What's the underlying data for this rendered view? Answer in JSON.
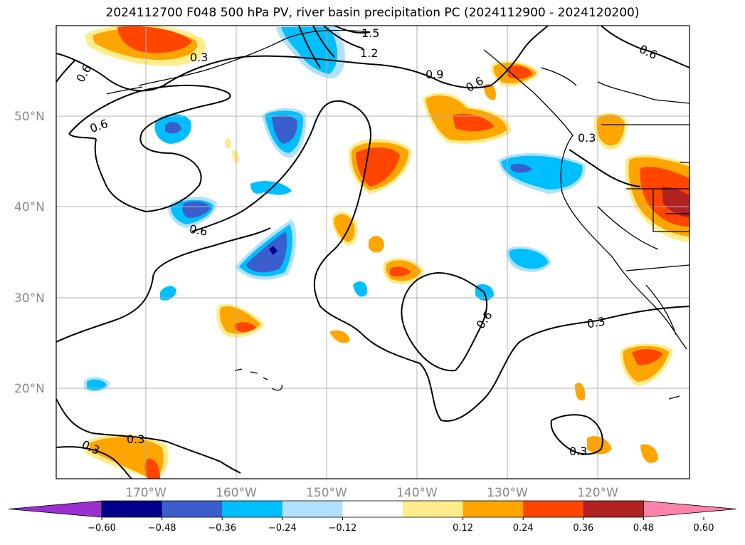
{
  "title": "2024112700 F048 500 hPa PV, river basin precipitation PC (2024112900 - 2024120200)",
  "lat_labels": [
    "50°N",
    "40°N",
    "30°N",
    "20°N"
  ],
  "lon_labels": [
    "170°W",
    "160°W",
    "150°W",
    "140°W",
    "130°W",
    "120°W"
  ],
  "pv_contour_labels": [
    "1.5",
    "1.2",
    "0.9",
    "0.3",
    "0.6",
    "0.6",
    "0.6",
    "0.6",
    "0.6",
    "0.3",
    "0.3",
    "0.3",
    "0.3",
    "0.3",
    "0.6"
  ],
  "colorbar": {
    "ticks": [
      "−0.60",
      "−0.48",
      "−0.36",
      "−0.24",
      "−0.12",
      "0.12",
      "0.24",
      "0.36",
      "0.48",
      "0.60"
    ],
    "colors": [
      "#9b30d0",
      "#00008b",
      "#3a5fcd",
      "#00bfff",
      "#b0e2ff",
      "#ffffff",
      "#ffec8b",
      "#ffa500",
      "#ff4500",
      "#b22222",
      "#ff82ab"
    ]
  },
  "palette": {
    "strong_neg": "#00008b",
    "neg3": "#3a5fcd",
    "neg2": "#00bfff",
    "neg1": "#b0e2ff",
    "pos1": "#ffec8b",
    "pos2": "#ffa500",
    "pos3": "#ff4500",
    "pos4": "#b22222"
  }
}
